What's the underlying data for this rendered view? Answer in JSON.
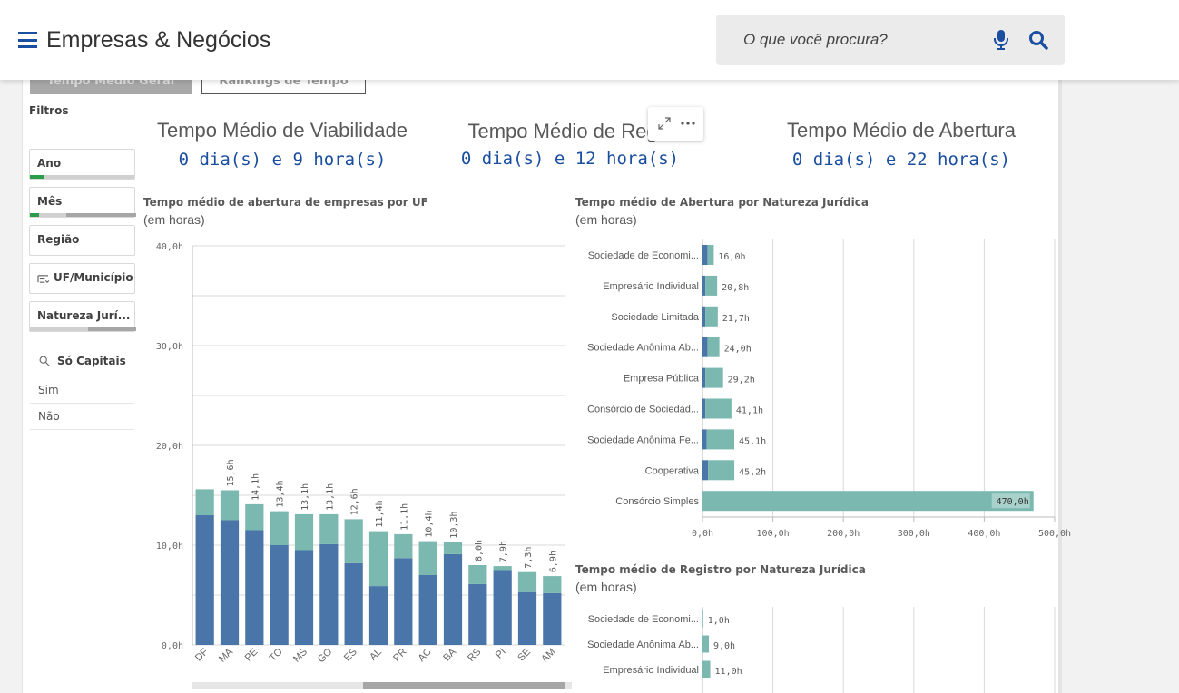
{
  "header": {
    "title": "Empresas & Negócios",
    "search_placeholder": "O que você procura?"
  },
  "tabs": [
    {
      "label": "Tempo Médio Geral"
    },
    {
      "label": "Rankings de Tempo"
    }
  ],
  "filters": {
    "title": "Filtros",
    "items": [
      {
        "label": "Ano"
      },
      {
        "label": "Mês"
      },
      {
        "label": "Região"
      },
      {
        "label": "UF/Município"
      },
      {
        "label": "Natureza Jurí..."
      }
    ],
    "capitais": {
      "label": "Só Capitais",
      "options": [
        "Sim",
        "Não"
      ]
    }
  },
  "kpis": [
    {
      "title": "Tempo Médio de Viabilidade",
      "value": "0 dia(s) e 9 hora(s)"
    },
    {
      "title": "Tempo Médio de Regis",
      "value": "0 dia(s) e 12 hora(s)"
    },
    {
      "title": "Tempo Médio de Abertura",
      "value": "0 dia(s) e 22 hora(s)"
    }
  ],
  "colors": {
    "primary": "#4a75a8",
    "secondary": "#7ab8b0",
    "accent_blue": "#1a4ea0",
    "filter_green": "#2a9d4a"
  },
  "chart_data": [
    {
      "type": "bar",
      "stacked": true,
      "title": "Tempo médio de abertura de empresas por UF",
      "subtitle": "(em horas)",
      "categories": [
        "DF",
        "MA",
        "PE",
        "TO",
        "MS",
        "GO",
        "ES",
        "AL",
        "PR",
        "AC",
        "BA",
        "RS",
        "PI",
        "SE",
        "AM"
      ],
      "series": [
        {
          "color": "#4a75a8",
          "values": [
            13.0,
            12.5,
            11.5,
            10.0,
            9.5,
            10.1,
            8.2,
            5.9,
            8.7,
            7.0,
            9.1,
            6.1,
            7.5,
            5.3,
            5.2
          ]
        },
        {
          "color": "#7ab8b0",
          "values": [
            2.6,
            3.0,
            2.6,
            3.4,
            3.6,
            3.0,
            4.4,
            5.5,
            2.4,
            3.4,
            1.2,
            1.9,
            0.4,
            2.0,
            1.7
          ]
        }
      ],
      "totals": [
        "15,6h",
        "15,6h",
        "14,1h",
        "13,4h",
        "13,1h",
        "13,1h",
        "12,6h",
        "11,4h",
        "11,1h",
        "10,4h",
        "10,3h",
        "8,0h",
        "7,9h",
        "7,3h",
        "6,9h"
      ],
      "show_total_labels": [
        false,
        true,
        true,
        true,
        true,
        true,
        true,
        true,
        true,
        true,
        true,
        true,
        true,
        true,
        true
      ],
      "y_ticks": [
        "0,0h",
        "10,0h",
        "20,0h",
        "30,0h",
        "40,0h"
      ],
      "ylim": [
        0,
        40
      ],
      "grid": true
    },
    {
      "type": "bar",
      "orientation": "horizontal",
      "stacked": true,
      "title": "Tempo médio de Abertura por Natureza Jurídica",
      "subtitle": "(em horas)",
      "categories": [
        "Sociedade de Economi...",
        "Empresário Individual",
        "Sociedade Limitada",
        "Sociedade Anônima Ab...",
        "Empresa Pública",
        "Consórcio de Sociedad...",
        "Sociedade Anônima Fe...",
        "Cooperativa",
        "Consórcio Simples"
      ],
      "series": [
        {
          "color": "#4a75a8",
          "values": [
            7,
            4,
            4,
            7,
            4,
            4,
            6,
            8,
            0
          ]
        },
        {
          "color": "#7ab8b0",
          "values": [
            9.0,
            16.8,
            17.7,
            17.0,
            25.2,
            37.1,
            39.1,
            37.2,
            470.0
          ]
        }
      ],
      "totals": [
        "16,0h",
        "20,8h",
        "21,7h",
        "24,0h",
        "29,2h",
        "41,1h",
        "45,1h",
        "45,2h",
        "470,0h"
      ],
      "x_ticks": [
        "0,0h",
        "100,0h",
        "200,0h",
        "300,0h",
        "400,0h",
        "500,0h"
      ],
      "xlim": [
        0,
        500
      ],
      "grid": true
    },
    {
      "type": "bar",
      "orientation": "horizontal",
      "title": "Tempo médio de Registro por Natureza Jurídica",
      "subtitle": "(em horas)",
      "categories": [
        "Sociedade de Economi...",
        "Sociedade Anônima Ab...",
        "Empresário Individual"
      ],
      "series": [
        {
          "color": "#7ab8b0",
          "values": [
            1.0,
            9.0,
            11.0
          ]
        }
      ],
      "totals": [
        "1,0h",
        "9,0h",
        "11,0h"
      ],
      "xlim": [
        0,
        500
      ],
      "grid": true
    }
  ]
}
